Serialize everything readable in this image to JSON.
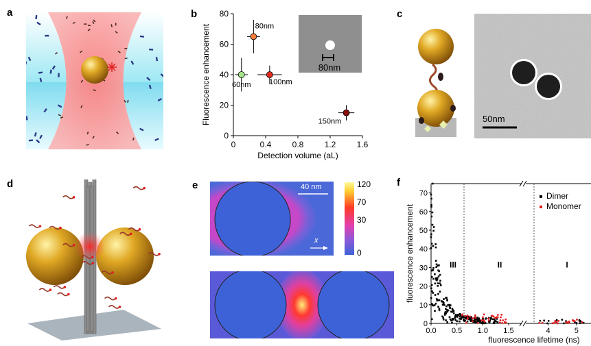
{
  "panels": {
    "a": {
      "letter": "a"
    },
    "b": {
      "letter": "b"
    },
    "c": {
      "letter": "c",
      "scale_bar": "50nm"
    },
    "d": {
      "letter": "d"
    },
    "e": {
      "letter": "e",
      "scale_bar": "40 nm",
      "axis_label": "x",
      "colorbar_ticks": [
        "120",
        "70",
        "30",
        "0"
      ]
    },
    "f": {
      "letter": "f"
    }
  },
  "chart_data": [
    {
      "type": "scatter",
      "xlabel": "Detection volume (aL)",
      "ylabel": "Fluorescence enhancement",
      "xlim": [
        0,
        1.6
      ],
      "ylim": [
        0,
        80
      ],
      "xticks": [
        "0",
        "0.4",
        "0.8",
        "1.2",
        "1.6"
      ],
      "yticks": [
        "0",
        "20",
        "40",
        "60",
        "80"
      ],
      "inset_scale": "80nm",
      "points": [
        {
          "label": "60nm",
          "x": 0.1,
          "y": 40,
          "xerr": 0.08,
          "yerr": 11,
          "color": "#a8e68c"
        },
        {
          "label": "80nm",
          "x": 0.25,
          "y": 65,
          "xerr": 0.08,
          "yerr": 11,
          "color": "#f07a3a"
        },
        {
          "label": "100nm",
          "x": 0.45,
          "y": 40,
          "xerr": 0.15,
          "yerr": 6,
          "color": "#e02a1e"
        },
        {
          "label": "150nm",
          "x": 1.4,
          "y": 15,
          "xerr": 0.1,
          "yerr": 5,
          "color": "#8a1010"
        }
      ]
    },
    {
      "type": "scatter",
      "xlabel": "fluorescence lifetime (ns)",
      "ylabel": "fluorescence enhancement",
      "ylim": [
        0,
        75
      ],
      "yticks": [
        "0",
        "10",
        "20",
        "30",
        "40",
        "50",
        "60",
        "70"
      ],
      "xticks": [
        "0.0",
        "0.5",
        "1.0",
        "1.5",
        "4",
        "5"
      ],
      "regions": [
        "III",
        "II",
        "I"
      ],
      "series": [
        {
          "name": "Dimer",
          "color": "#000000"
        },
        {
          "name": "Monomer",
          "color": "#e02020"
        }
      ]
    }
  ]
}
